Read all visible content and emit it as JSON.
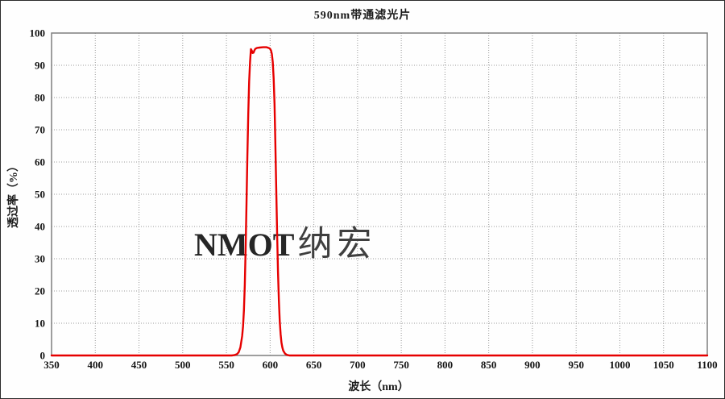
{
  "title": "590nm带通滤光片",
  "watermark": {
    "latin": "NMOT",
    "cjk": "纳宏"
  },
  "colors": {
    "curve": "#e60000",
    "grid": "#999999",
    "plot_border": "#7f7f7f",
    "text": "#1a1a1a",
    "watermark_latin": "#262626",
    "watermark_cjk": "#3f3f3f"
  },
  "chart_data": {
    "type": "line",
    "title": "590nm带通滤光片",
    "xlabel": "波长（nm）",
    "ylabel": "透过率（%）",
    "xlim": [
      350,
      1100
    ],
    "ylim": [
      0,
      100
    ],
    "xticks": [
      350,
      400,
      450,
      500,
      550,
      600,
      650,
      700,
      750,
      800,
      850,
      900,
      950,
      1000,
      1050,
      1100
    ],
    "yticks": [
      0,
      10,
      20,
      30,
      40,
      50,
      60,
      70,
      80,
      90,
      100
    ],
    "grid": "dotted",
    "legend": "none",
    "series": [
      {
        "name": "transmittance",
        "color": "#e60000",
        "points": [
          [
            350,
            0
          ],
          [
            400,
            0
          ],
          [
            450,
            0
          ],
          [
            500,
            0
          ],
          [
            530,
            0
          ],
          [
            550,
            0
          ],
          [
            556,
            0
          ],
          [
            559,
            0.1
          ],
          [
            562,
            0.4
          ],
          [
            564,
            1
          ],
          [
            566,
            2.5
          ],
          [
            568,
            6
          ],
          [
            569,
            9
          ],
          [
            570,
            14
          ],
          [
            571,
            22
          ],
          [
            572,
            33
          ],
          [
            573,
            47
          ],
          [
            574,
            62
          ],
          [
            575,
            75
          ],
          [
            576,
            85
          ],
          [
            577,
            91
          ],
          [
            578,
            95.0
          ],
          [
            579,
            94.6
          ],
          [
            580,
            93.8
          ],
          [
            581,
            93.9
          ],
          [
            582,
            94.6
          ],
          [
            583,
            95.1
          ],
          [
            585,
            95.4
          ],
          [
            588,
            95.5
          ],
          [
            592,
            95.6
          ],
          [
            596,
            95.6
          ],
          [
            599,
            95.3
          ],
          [
            600,
            95.1
          ],
          [
            601,
            94.6
          ],
          [
            602,
            93.5
          ],
          [
            603,
            91
          ],
          [
            604,
            86
          ],
          [
            605,
            78
          ],
          [
            606,
            66
          ],
          [
            607,
            52
          ],
          [
            608,
            38
          ],
          [
            609,
            26
          ],
          [
            610,
            17
          ],
          [
            611,
            10.5
          ],
          [
            612,
            6.5
          ],
          [
            613,
            4
          ],
          [
            614,
            2.5
          ],
          [
            615,
            1.5
          ],
          [
            617,
            0.6
          ],
          [
            619,
            0.2
          ],
          [
            622,
            0
          ],
          [
            650,
            0
          ],
          [
            700,
            0
          ],
          [
            750,
            0
          ],
          [
            800,
            0
          ],
          [
            850,
            0
          ],
          [
            900,
            0
          ],
          [
            950,
            0
          ],
          [
            1000,
            0
          ],
          [
            1050,
            0
          ],
          [
            1100,
            0
          ]
        ]
      }
    ]
  }
}
